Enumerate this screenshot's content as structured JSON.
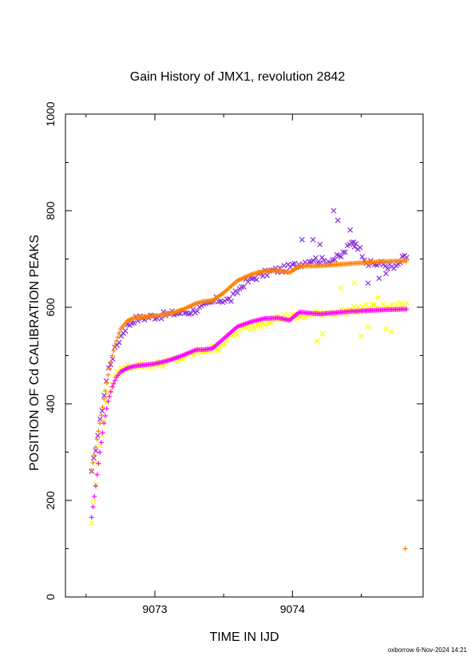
{
  "chart_data": {
    "type": "scatter",
    "title": "Gain History of JMX1, revolution 2842",
    "xlabel": "TIME IN IJD",
    "ylabel": "POSITION OF Cd CALIBRATION PEAKS",
    "xlim": [
      9072.35,
      9074.95
    ],
    "ylim": [
      0,
      1000
    ],
    "x_ticks": [
      "9073",
      "9074"
    ],
    "y_ticks": [
      "0",
      "200",
      "400",
      "600",
      "800",
      "1000"
    ],
    "grid": false,
    "series": [
      {
        "marker": "x",
        "color": "#8a2be2",
        "x": [
          9072.54,
          9072.6,
          9072.66,
          9072.72,
          9072.78,
          9072.85,
          9072.95,
          9073.05,
          9073.15,
          9073.25,
          9073.35,
          9073.45,
          9073.55,
          9073.65,
          9073.75,
          9073.85,
          9073.95,
          9074.05,
          9074.15,
          9074.25,
          9074.35,
          9074.45,
          9074.55,
          9074.65,
          9074.75,
          9074.8,
          9074.83
        ],
        "y": [
          255,
          360,
          470,
          520,
          555,
          575,
          580,
          583,
          588,
          590,
          600,
          615,
          615,
          650,
          665,
          675,
          680,
          690,
          700,
          695,
          705,
          740,
          690,
          690,
          680,
          700,
          705
        ],
        "outliers": {
          "x": [
            9074.07,
            9074.15,
            9074.2,
            9074.3,
            9074.33,
            9074.42,
            9074.45,
            9074.55,
            9074.63,
            9074.68
          ],
          "y": [
            740,
            740,
            730,
            800,
            780,
            760,
            725,
            650,
            660,
            670
          ]
        }
      },
      {
        "marker": "+",
        "color": "#ff8000",
        "x": [
          9072.54,
          9072.57,
          9072.6,
          9072.63,
          9072.66,
          9072.69,
          9072.72,
          9072.75,
          9072.8,
          9072.85,
          9072.9,
          9073.0,
          9073.1,
          9073.2,
          9073.3,
          9073.35,
          9073.42,
          9073.5,
          9073.6,
          9073.7,
          9073.8,
          9073.9,
          9073.98,
          9074.05,
          9074.2,
          9074.4,
          9074.6,
          9074.8,
          9074.83
        ],
        "y": [
          262,
          310,
          360,
          410,
          460,
          500,
          530,
          555,
          572,
          578,
          580,
          582,
          586,
          595,
          608,
          612,
          614,
          630,
          655,
          668,
          675,
          676,
          672,
          685,
          686,
          690,
          694,
          696,
          696
        ],
        "outliers": {
          "x": [
            9074.82
          ],
          "y": [
            100
          ]
        }
      },
      {
        "marker": "x",
        "color": "#ffff00",
        "x": [
          9072.54,
          9072.6,
          9072.66,
          9072.72,
          9072.78,
          9072.85,
          9072.95,
          9073.05,
          9073.15,
          9073.25,
          9073.35,
          9073.45,
          9073.55,
          9073.65,
          9073.75,
          9073.85,
          9073.95,
          9074.05,
          9074.15,
          9074.25,
          9074.35,
          9074.45,
          9074.55,
          9074.65,
          9074.75,
          9074.8,
          9074.83
        ],
        "y": [
          155,
          310,
          420,
          460,
          475,
          480,
          480,
          483,
          490,
          500,
          510,
          515,
          540,
          555,
          565,
          575,
          580,
          580,
          585,
          590,
          590,
          595,
          600,
          600,
          600,
          605,
          605
        ],
        "outliers": {
          "x": [
            9074.18,
            9074.22,
            9074.35,
            9074.45,
            9074.5,
            9074.55,
            9074.62,
            9074.68,
            9074.72
          ],
          "y": [
            530,
            545,
            640,
            650,
            540,
            560,
            620,
            555,
            550
          ]
        }
      },
      {
        "marker": "+",
        "color": "#ff00ff",
        "x": [
          9072.54,
          9072.57,
          9072.6,
          9072.63,
          9072.66,
          9072.69,
          9072.72,
          9072.75,
          9072.8,
          9072.85,
          9072.9,
          9073.0,
          9073.1,
          9073.2,
          9073.3,
          9073.35,
          9073.42,
          9073.5,
          9073.6,
          9073.7,
          9073.8,
          9073.9,
          9073.98,
          9074.05,
          9074.2,
          9074.4,
          9074.6,
          9074.8,
          9074.83
        ],
        "y": [
          165,
          230,
          300,
          360,
          405,
          435,
          455,
          466,
          474,
          478,
          480,
          483,
          490,
          500,
          512,
          512,
          515,
          535,
          560,
          570,
          577,
          578,
          573,
          590,
          586,
          591,
          594,
          596,
          596
        ],
        "outliers": {
          "x": [],
          "y": []
        }
      }
    ]
  },
  "footer": "oxborrow  6-Nov-2024 14:21"
}
